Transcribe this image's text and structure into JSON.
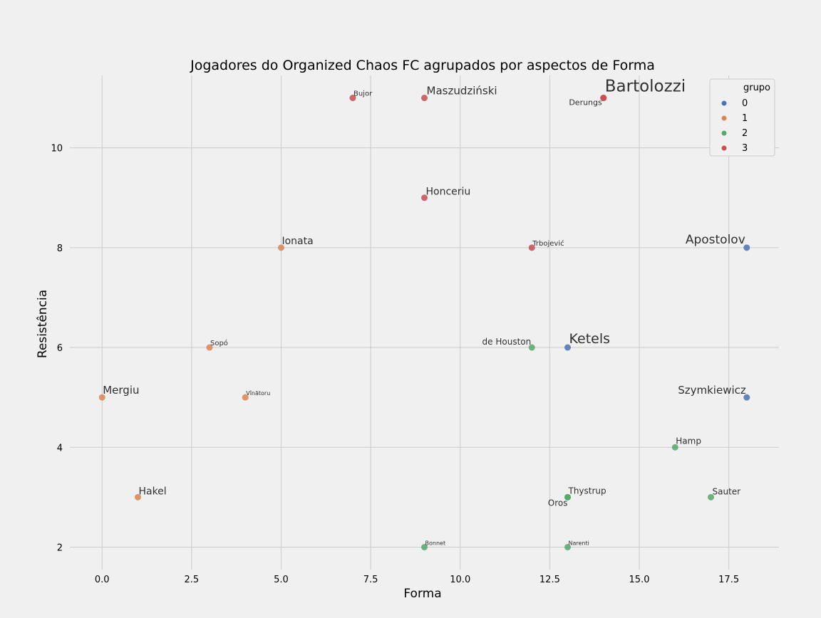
{
  "colors": {
    "background": "#f0f0f0",
    "grid": "#cbcbcb",
    "text": "#303030",
    "groups": [
      "#4c72b0",
      "#dd8452",
      "#55a868",
      "#c44e52"
    ]
  },
  "chart_data": {
    "type": "scatter",
    "title": "Jogadores do Organized Chaos FC agrupados por aspectos de Forma",
    "xlabel": "Forma",
    "ylabel": "Resistência",
    "xlim": [
      -0.9,
      18.9
    ],
    "ylim": [
      1.55,
      11.45
    ],
    "xticks": [
      "0.0",
      "2.5",
      "5.0",
      "7.5",
      "10.0",
      "12.5",
      "15.0",
      "17.5"
    ],
    "yticks": [
      "2",
      "4",
      "6",
      "8",
      "10"
    ],
    "grid": true,
    "legend": {
      "title": "grupo",
      "placement": "top-right",
      "entries": [
        "0",
        "1",
        "2",
        "3"
      ]
    },
    "points": [
      {
        "name": "Bartolozzi",
        "x": 14,
        "y": 11,
        "group": 3
      },
      {
        "name": "Derungs",
        "x": 14,
        "y": 11,
        "group": 3
      },
      {
        "name": "Bujor",
        "x": 7,
        "y": 11,
        "group": 3
      },
      {
        "name": "Maszudziński",
        "x": 9,
        "y": 11,
        "group": 3
      },
      {
        "name": "Honceriu",
        "x": 9,
        "y": 9,
        "group": 3
      },
      {
        "name": "Trbojević",
        "x": 12,
        "y": 8,
        "group": 3
      },
      {
        "name": "Ionata",
        "x": 5,
        "y": 8,
        "group": 1
      },
      {
        "name": "Apostolov",
        "x": 18,
        "y": 8,
        "group": 0
      },
      {
        "name": "Sopó",
        "x": 3,
        "y": 6,
        "group": 1
      },
      {
        "name": "de Houston",
        "x": 12,
        "y": 6,
        "group": 2
      },
      {
        "name": "Ketels",
        "x": 13,
        "y": 6,
        "group": 0
      },
      {
        "name": "Mergiu",
        "x": 0,
        "y": 5,
        "group": 1
      },
      {
        "name": "Vînătoru",
        "x": 4,
        "y": 5,
        "group": 1
      },
      {
        "name": "Szymkiewicz",
        "x": 18,
        "y": 5,
        "group": 0
      },
      {
        "name": "Hamp",
        "x": 16,
        "y": 4,
        "group": 2
      },
      {
        "name": "Hakel",
        "x": 1,
        "y": 3,
        "group": 1
      },
      {
        "name": "Thystrup",
        "x": 13,
        "y": 3,
        "group": 2
      },
      {
        "name": "Oros",
        "x": 13,
        "y": 3,
        "group": 2
      },
      {
        "name": "Sauter",
        "x": 17,
        "y": 3,
        "group": 2
      },
      {
        "name": "Bonnet",
        "x": 9,
        "y": 2,
        "group": 2
      },
      {
        "name": "Narenti",
        "x": 13,
        "y": 2,
        "group": 2
      }
    ]
  }
}
